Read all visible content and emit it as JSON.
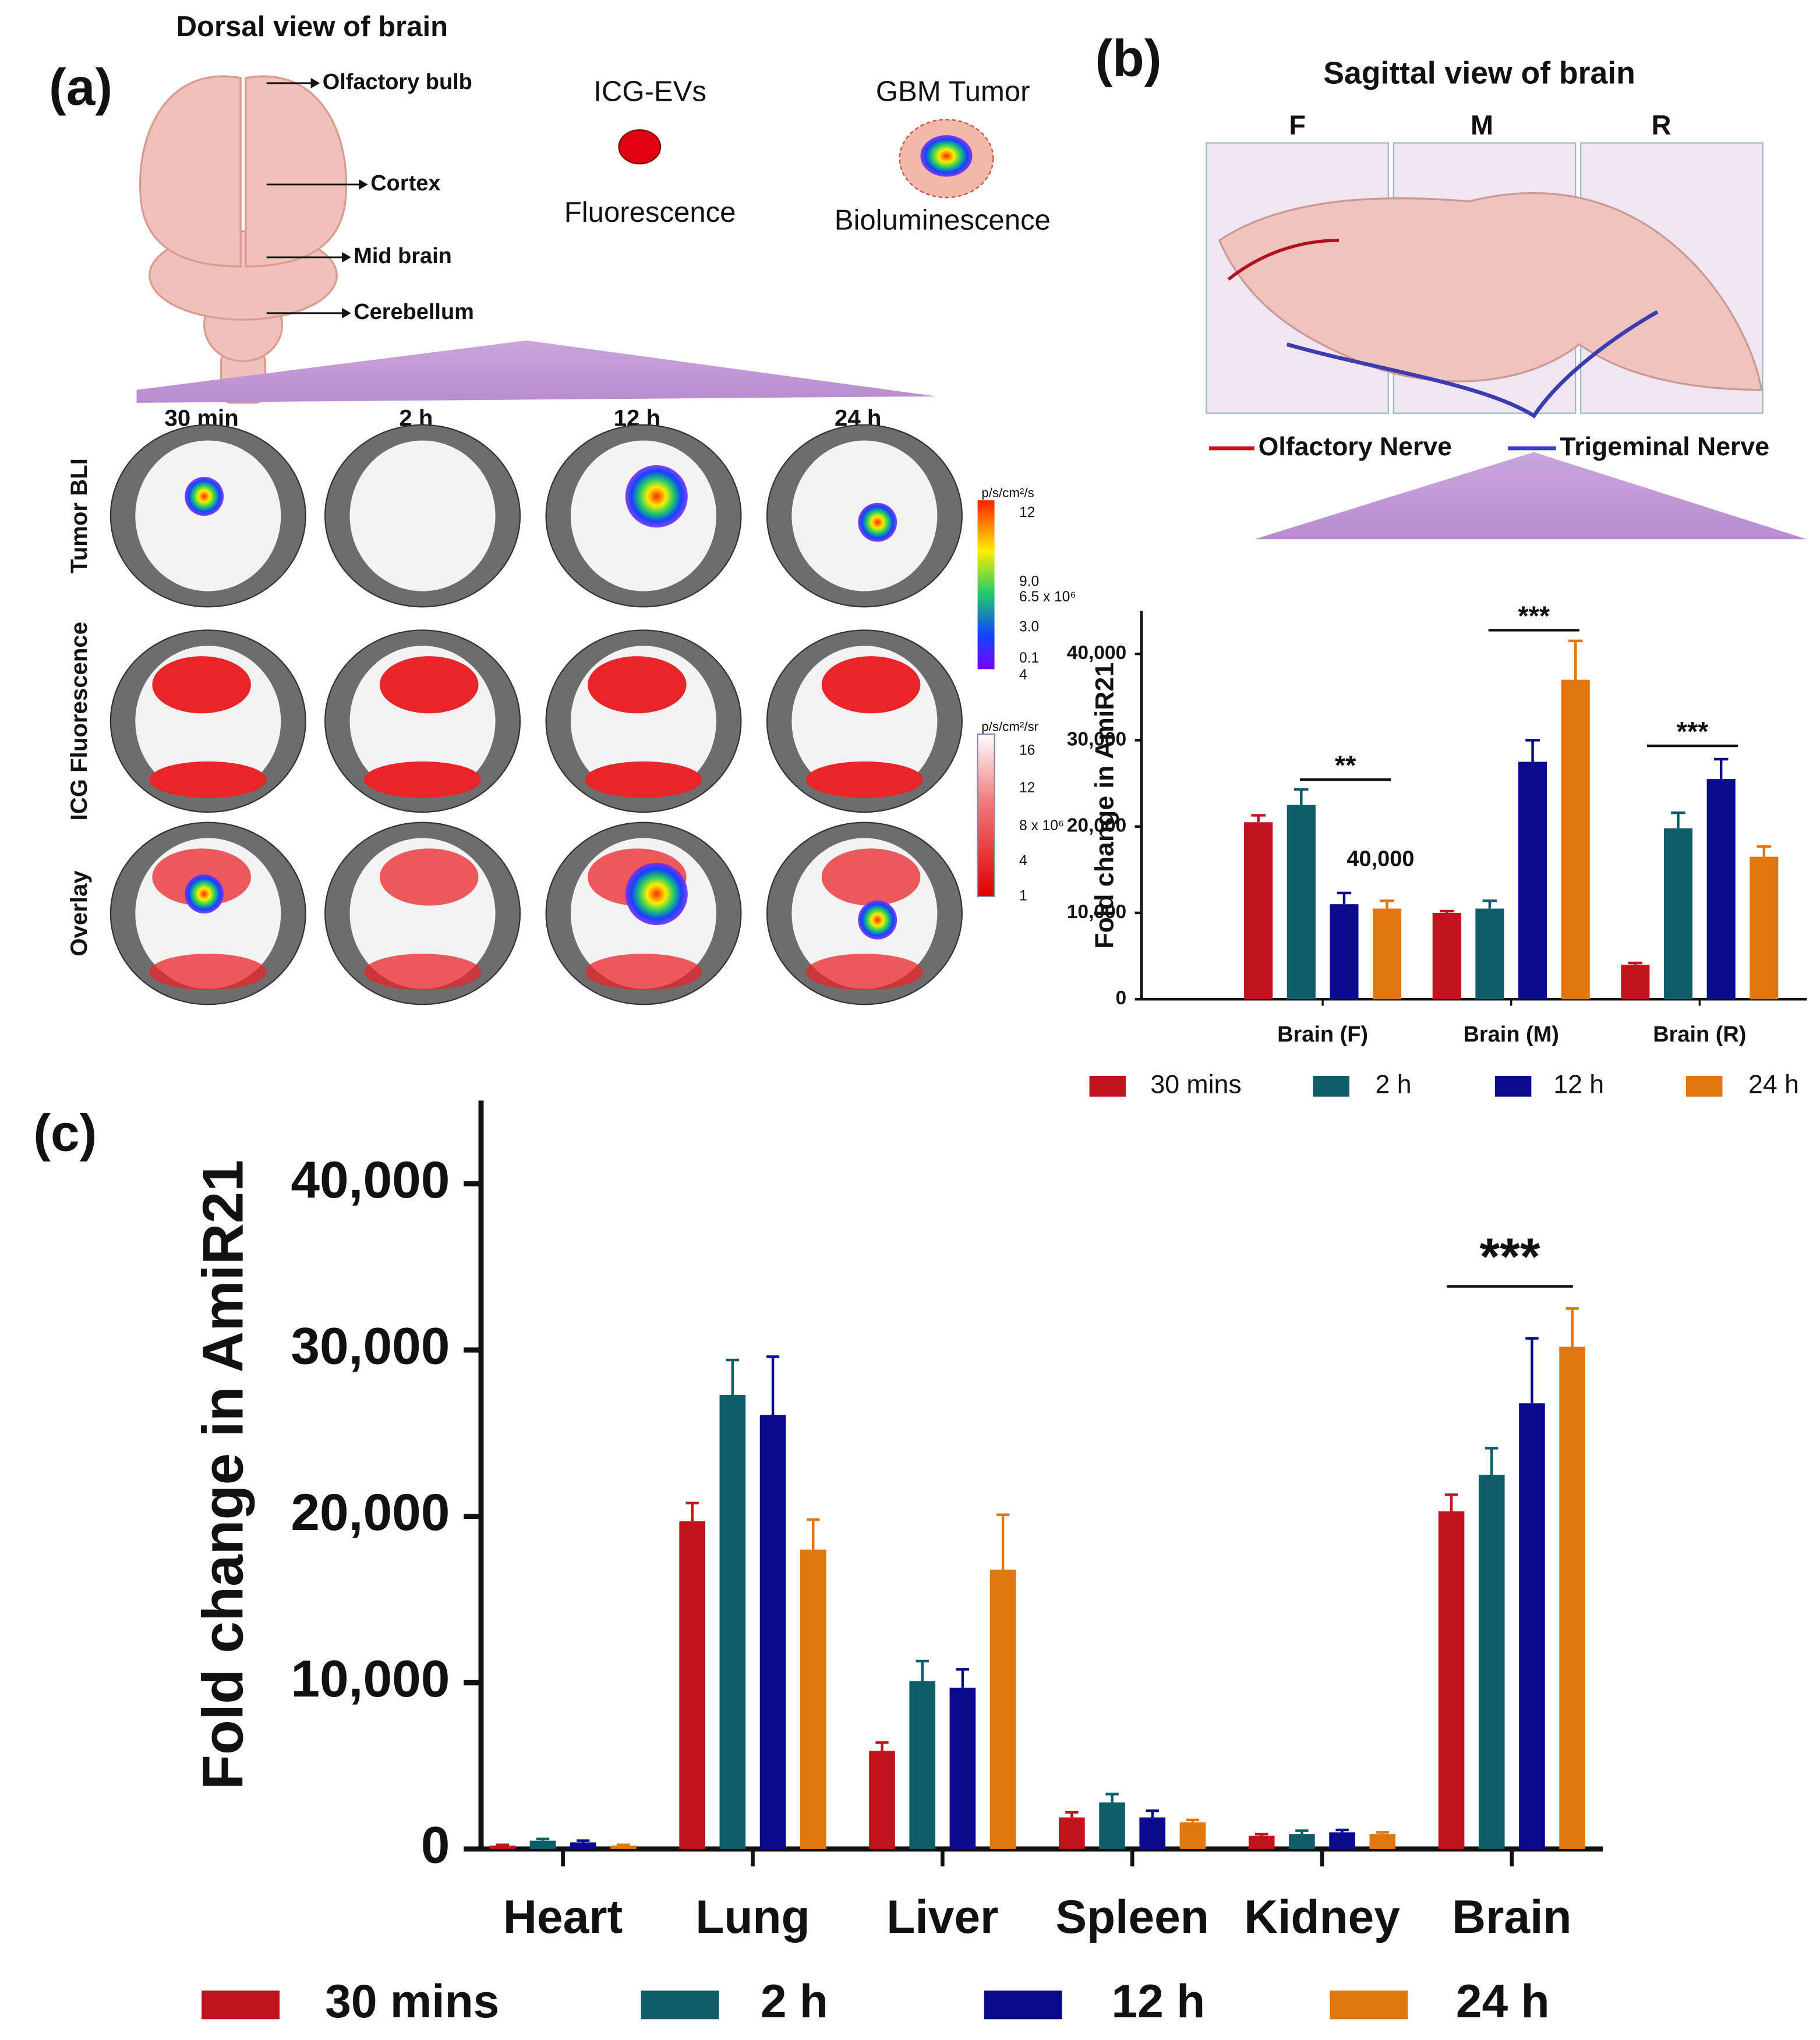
{
  "panel_a": {
    "panel_label": "(a)",
    "title": "Dorsal view of brain",
    "brain_parts": [
      "Olfactory bulb",
      "Cortex",
      "Mid brain",
      "Cerebellum"
    ],
    "probe": "ICG-EVs",
    "probe_signal": "Fluorescence",
    "tumor": "GBM Tumor",
    "tumor_signal": "Bioluminescence",
    "time_points": [
      "30 min",
      "2 h",
      "12 h",
      "24 h"
    ],
    "rows": [
      "Tumor BLI",
      "ICG Fluorescence",
      "Overlay"
    ],
    "scale_bli": {
      "unit": "p/s/cm²/s",
      "labels": [
        "12",
        "9.0",
        "6.5 x 10⁶",
        "3.0",
        "0.1",
        "4"
      ]
    },
    "scale_icg": {
      "unit": "p/s/cm²/sr",
      "labels": [
        "16",
        "12",
        "8 x 10⁶",
        "4",
        "1"
      ]
    }
  },
  "panel_b": {
    "panel_label": "(b)",
    "title": "Sagittal view of brain",
    "regions": [
      "F",
      "M",
      "R"
    ],
    "nerves": [
      "Olfactory Nerve",
      "Trigeminal Nerve"
    ]
  },
  "panel_c": {
    "panel_label": "(c)"
  },
  "chart_data": [
    {
      "type": "bar",
      "y_label": "Fold change in AmiR21",
      "categories": [
        "Brain (F)",
        "Brain (M)",
        "Brain (R)"
      ],
      "series": [
        {
          "name": "30 mins",
          "color": "#c0141c",
          "values": [
            20500,
            10000,
            4000
          ],
          "errors": [
            800,
            200,
            200
          ]
        },
        {
          "name": "2 h",
          "color": "#0e5d68",
          "values": [
            22500,
            10500,
            19800
          ],
          "errors": [
            1800,
            900,
            1800
          ]
        },
        {
          "name": "12 h",
          "color": "#0a0a8c",
          "values": [
            11000,
            27500,
            25500
          ],
          "errors": [
            1300,
            2500,
            2300
          ]
        },
        {
          "name": "24 h",
          "color": "#e2760e",
          "values": [
            10500,
            37000,
            16500
          ],
          "errors": [
            900,
            4500,
            1200
          ]
        }
      ],
      "ylim": [
        0,
        45000
      ],
      "yticks": [
        0,
        {
          "value": 10000,
          "label": "10,000"
        },
        {
          "value": 20000,
          "label": "20,000"
        },
        {
          "value": 30000,
          "label": "30,000"
        },
        {
          "value": 40000,
          "label": "40,000"
        }
      ],
      "annotations": [
        "**",
        "***",
        "***",
        "40,000"
      ]
    },
    {
      "type": "bar",
      "y_label": "Fold change in AmiR21",
      "categories": [
        "Heart",
        "Lung",
        "Liver",
        "Spleen",
        "Kidney",
        "Brain"
      ],
      "series": [
        {
          "name": "30 mins",
          "color": "#c0141c",
          "values": [
            200,
            19700,
            5900,
            1900,
            800,
            20300
          ],
          "errors": [
            50,
            1100,
            500,
            300,
            100,
            1000
          ]
        },
        {
          "name": "2 h",
          "color": "#0e5d68",
          "values": [
            500,
            27300,
            10100,
            2800,
            900,
            22500
          ],
          "errors": [
            100,
            2100,
            1200,
            500,
            200,
            1600
          ]
        },
        {
          "name": "12 h",
          "color": "#0a0a8c",
          "values": [
            400,
            26100,
            9700,
            1900,
            1000,
            26800
          ],
          "errors": [
            100,
            3500,
            1100,
            400,
            150,
            3900
          ]
        },
        {
          "name": "24 h",
          "color": "#e2760e",
          "values": [
            200,
            18000,
            16800,
            1600,
            900,
            30200
          ],
          "errors": [
            50,
            1800,
            3300,
            150,
            100,
            2300
          ]
        }
      ],
      "ylim": [
        0,
        45000
      ],
      "yticks": [
        0,
        {
          "value": 10000,
          "label": "10,000"
        },
        {
          "value": 20000,
          "label": "20,000"
        },
        {
          "value": 30000,
          "label": "30,000"
        },
        {
          "value": 40000,
          "label": "40,000"
        }
      ],
      "annotations": [
        "***"
      ]
    }
  ]
}
